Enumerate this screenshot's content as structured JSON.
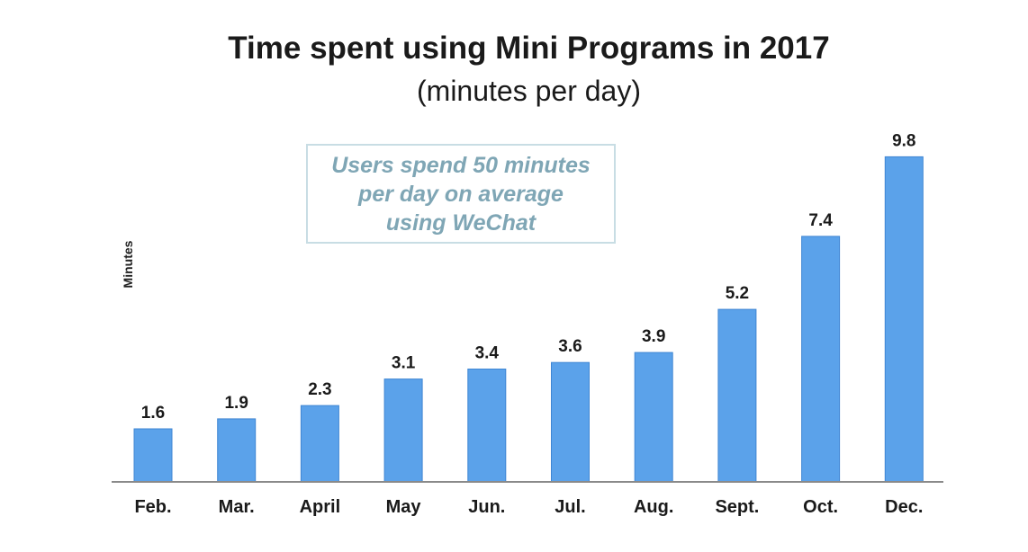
{
  "chart_data": {
    "type": "bar",
    "title": "Time spent using Mini Programs in 2017",
    "subtitle": "(minutes per day)",
    "ylabel": "Minutes",
    "xlabel": "",
    "categories": [
      "Feb.",
      "Mar.",
      "April",
      "May",
      "Jun.",
      "Jul.",
      "Aug.",
      "Sept.",
      "Oct.",
      "Dec."
    ],
    "values": [
      1.6,
      1.9,
      2.3,
      3.1,
      3.4,
      3.6,
      3.9,
      5.2,
      7.4,
      9.8
    ],
    "value_labels": [
      "1.6",
      "1.9",
      "2.3",
      "3.1",
      "3.4",
      "3.6",
      "3.9",
      "5.2",
      "7.4",
      "9.8"
    ],
    "ylim": [
      0,
      10
    ],
    "grid": false,
    "bar_color": "#5ba2ea",
    "bar_edge_color": "#3f86d3",
    "annotation": "Users spend 50 minutes\nper day on average\nusing WeChat"
  }
}
